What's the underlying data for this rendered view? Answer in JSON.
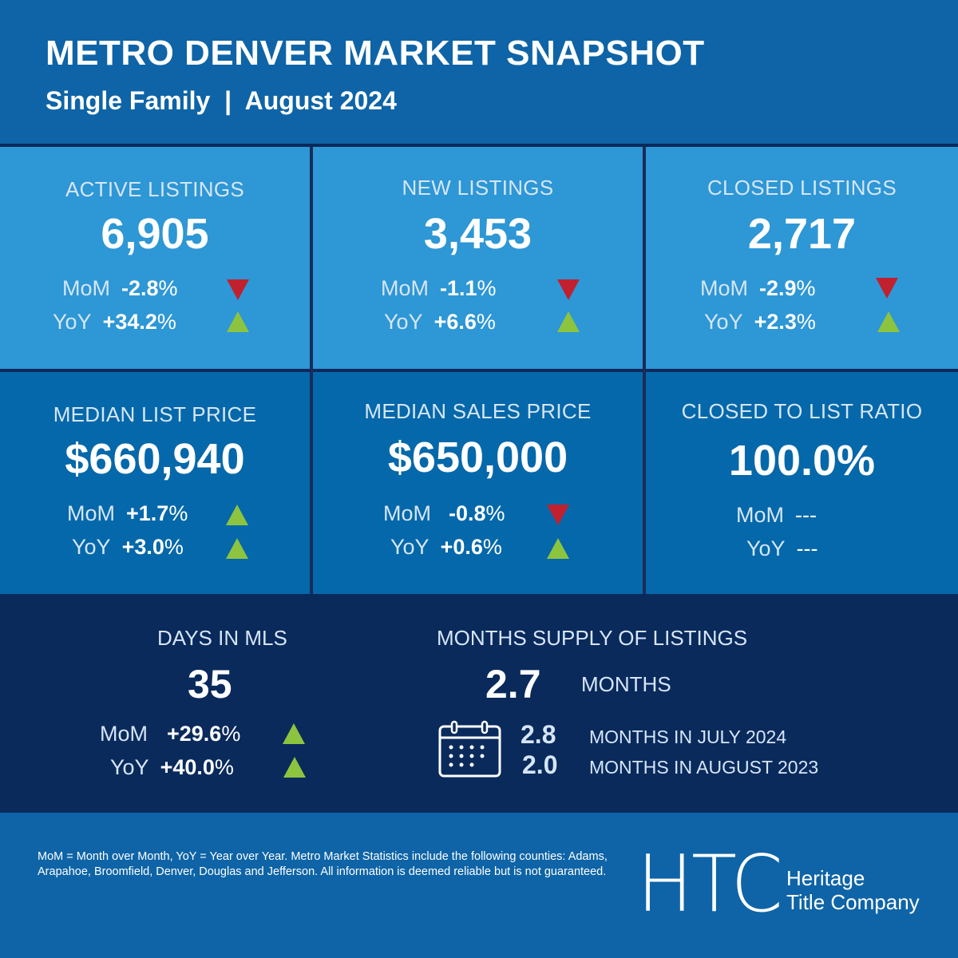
{
  "header": {
    "title": "METRO DENVER MARKET SNAPSHOT",
    "subtitle": "Single Family  |  August 2024"
  },
  "colors": {
    "header_bg": "#0e64a6",
    "row1_bg": "#2e97d5",
    "row2_bg": "#0568aa",
    "bottom_bg": "#0a2a5c",
    "down": "#c1202f",
    "up": "#8dc43f"
  },
  "metrics": [
    {
      "label": "ACTIVE LISTINGS",
      "value": "6,905",
      "mom_label": "MoM",
      "mom": "-2.8",
      "mom_dir": "down",
      "yoy_label": "YoY",
      "yoy": "+34.2",
      "yoy_dir": "up",
      "pct": "%"
    },
    {
      "label": "NEW LISTINGS",
      "value": "3,453",
      "mom_label": "MoM",
      "mom": "-1.1",
      "mom_dir": "down",
      "yoy_label": "YoY",
      "yoy": "+6.6",
      "yoy_dir": "up",
      "pct": "%"
    },
    {
      "label": "CLOSED LISTINGS",
      "value": "2,717",
      "mom_label": "MoM",
      "mom": "-2.9",
      "mom_dir": "down",
      "yoy_label": "YoY",
      "yoy": "+2.3",
      "yoy_dir": "up",
      "pct": "%"
    },
    {
      "label": "MEDIAN LIST PRICE",
      "value": "$660,940",
      "mom_label": "MoM",
      "mom": "+1.7",
      "mom_dir": "up",
      "yoy_label": "YoY",
      "yoy": "+3.0",
      "yoy_dir": "up",
      "pct": "%"
    },
    {
      "label": "MEDIAN SALES PRICE",
      "value": "$650,000",
      "mom_label": "MoM",
      "mom": "-0.8",
      "mom_dir": "down",
      "yoy_label": "YoY",
      "yoy": "+0.6",
      "yoy_dir": "up",
      "pct": "%"
    },
    {
      "label": "CLOSED TO LIST RATIO",
      "value": "100.0%",
      "mom_label": "MoM",
      "mom": "---",
      "yoy_label": "YoY",
      "yoy": "---"
    }
  ],
  "days_in_mls": {
    "label": "DAYS IN MLS",
    "value": "35",
    "mom_label": "MoM",
    "mom": "+29.6",
    "mom_dir": "up",
    "yoy_label": "YoY",
    "yoy": "+40.0",
    "yoy_dir": "up",
    "pct": "%"
  },
  "months_supply": {
    "label": "MONTHS SUPPLY OF LISTINGS",
    "value": "2.7",
    "unit": "MONTHS",
    "icon": "calendar-icon",
    "comparisons": [
      {
        "value": "2.8",
        "text": "MONTHS IN JULY 2024"
      },
      {
        "value": "2.0",
        "text": "MONTHS IN AUGUST 2023"
      }
    ]
  },
  "footer": {
    "disclaimer": "MoM = Month over Month, YoY = Year over Year. Metro Market Statistics include the following counties: Adams, Arapahoe, Broomfield, Denver, Douglas and Jefferson. All information is deemed reliable but is not guaranteed.",
    "logo_mark": "HTC",
    "company_line1": "Heritage",
    "company_line2": "Title Company"
  }
}
